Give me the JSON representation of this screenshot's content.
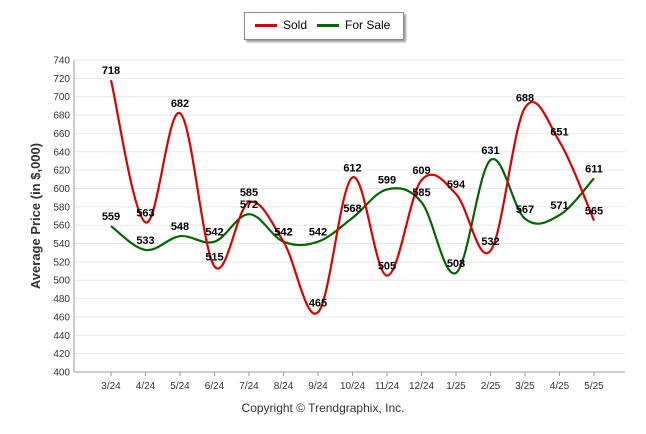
{
  "chart_data": {
    "type": "line",
    "title": "",
    "xlabel": "",
    "ylabel": "Average Price (in $,000)",
    "categories": [
      "3/24",
      "4/24",
      "5/24",
      "6/24",
      "7/24",
      "8/24",
      "9/24",
      "10/24",
      "11/24",
      "12/24",
      "1/25",
      "2/25",
      "3/25",
      "4/25",
      "5/25"
    ],
    "ylim": [
      400,
      740
    ],
    "ytick_step": 20,
    "grid": true,
    "legend_position": "top-center",
    "series": [
      {
        "name": "Sold",
        "color": "#dd0000",
        "values": [
          718,
          563,
          682,
          515,
          585,
          542,
          465,
          612,
          505,
          609,
          594,
          532,
          688,
          651,
          565
        ]
      },
      {
        "name": "For Sale",
        "color": "#006600",
        "values": [
          559,
          533,
          548,
          542,
          572,
          542,
          542,
          568,
          599,
          585,
          508,
          631,
          567,
          571,
          611
        ]
      }
    ]
  },
  "legend": {
    "sold": "Sold",
    "for_sale": "For Sale"
  },
  "footer": {
    "copyright": "Copyright © Trendgraphix, Inc."
  }
}
